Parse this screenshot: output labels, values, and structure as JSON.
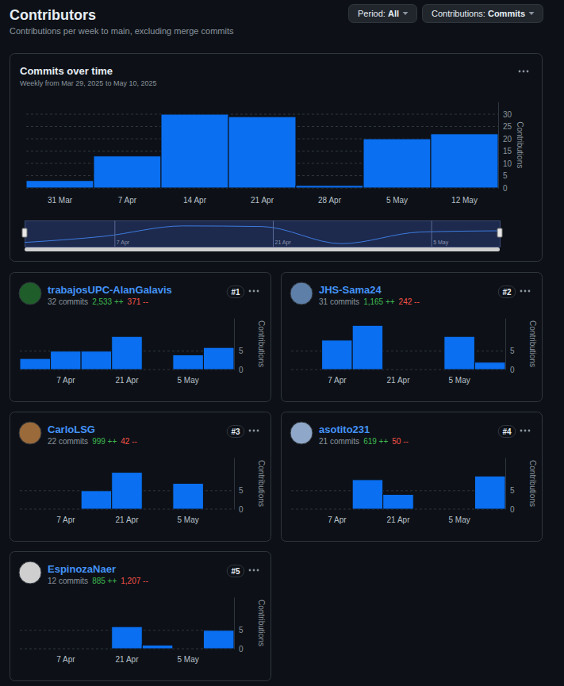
{
  "header": {
    "title": "Contributors",
    "subtitle": "Contributions per week to main, excluding merge commits"
  },
  "filters": [
    {
      "label": "Period:",
      "value": "All"
    },
    {
      "label": "Contributions:",
      "value": "Commits"
    }
  ],
  "navigator": {
    "labels": [
      "7 Apr",
      "21 Apr",
      "5 May"
    ]
  },
  "contributors": [
    {
      "name": "trabajosUPC-AlanGalavis",
      "commits": "32 commits",
      "additions": "2,533 ++",
      "deletions": "371 --",
      "rank": "#1"
    },
    {
      "name": "JHS-Sama24",
      "commits": "31 commits",
      "additions": "1,165 ++",
      "deletions": "242 --",
      "rank": "#2"
    },
    {
      "name": "CarloLSG",
      "commits": "22 commits",
      "additions": "999 ++",
      "deletions": "42 --",
      "rank": "#3"
    },
    {
      "name": "asotito231",
      "commits": "21 commits",
      "additions": "619 ++",
      "deletions": "50 --",
      "rank": "#4"
    },
    {
      "name": "EspinozaNaer",
      "commits": "12 commits",
      "additions": "885 ++",
      "deletions": "1,207 --",
      "rank": "#5"
    }
  ],
  "chart_data": [
    {
      "type": "bar",
      "title": "Commits over time",
      "subtitle": "Weekly from Mar 29, 2025 to May 10, 2025",
      "categories": [
        "31 Mar",
        "7 Apr",
        "14 Apr",
        "21 Apr",
        "28 Apr",
        "5 May",
        "12 May"
      ],
      "values": [
        3,
        13,
        30,
        29,
        1,
        20,
        22
      ],
      "color": "#0a6ff0",
      "ylim": [
        0,
        35
      ],
      "yticks": [
        0,
        5,
        10,
        15,
        20,
        25,
        30
      ],
      "grid": true,
      "y_label": "Contributions"
    },
    {
      "type": "bar",
      "categories": [
        null,
        "7 Apr",
        null,
        "21 Apr",
        null,
        "5 May",
        null
      ],
      "values": [
        3,
        5,
        5,
        9,
        0,
        4,
        6
      ],
      "color": "#0a6ff0",
      "ylim": [
        0,
        14
      ],
      "yticks": [
        0,
        5
      ],
      "grid": true,
      "y_label": "Contributions"
    },
    {
      "type": "bar",
      "categories": [
        null,
        "7 Apr",
        null,
        "21 Apr",
        null,
        "5 May",
        null
      ],
      "values": [
        0,
        8,
        12,
        0,
        0,
        9,
        2
      ],
      "color": "#0a6ff0",
      "ylim": [
        0,
        14
      ],
      "yticks": [
        0,
        5
      ],
      "grid": true,
      "y_label": "Contributions"
    },
    {
      "type": "bar",
      "categories": [
        null,
        "7 Apr",
        null,
        "21 Apr",
        null,
        "5 May",
        null
      ],
      "values": [
        0,
        0,
        5,
        10,
        0,
        7,
        0
      ],
      "color": "#0a6ff0",
      "ylim": [
        0,
        14
      ],
      "yticks": [
        0,
        5
      ],
      "grid": true,
      "y_label": "Contributions"
    },
    {
      "type": "bar",
      "categories": [
        null,
        "7 Apr",
        null,
        "21 Apr",
        null,
        "5 May",
        null
      ],
      "values": [
        0,
        0,
        8,
        4,
        0,
        0,
        9
      ],
      "color": "#0a6ff0",
      "ylim": [
        0,
        14
      ],
      "yticks": [
        0,
        5
      ],
      "grid": true,
      "y_label": "Contributions"
    },
    {
      "type": "bar",
      "categories": [
        null,
        "7 Apr",
        null,
        "21 Apr",
        null,
        "5 May",
        null
      ],
      "values": [
        0,
        0,
        0,
        6,
        1,
        0,
        5
      ],
      "color": "#0a6ff0",
      "ylim": [
        0,
        14
      ],
      "yticks": [
        0,
        5
      ],
      "grid": true,
      "y_label": "Contributions"
    }
  ]
}
